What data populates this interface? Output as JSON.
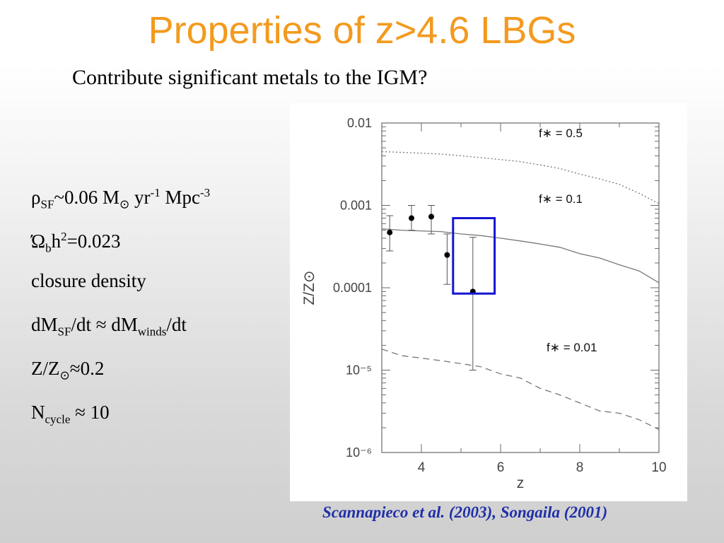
{
  "slide": {
    "title": "Properties of z>4.6 LBGs",
    "subtitle": "Contribute significant metals to the IGM?",
    "citation": "Scannapieco et al. (2003), Songaila (2001)"
  },
  "properties": {
    "rho": {
      "symbol": "ρ",
      "sub": "SF",
      "value": "~0.06 M",
      "sun": "⊙",
      "unit1": " yr",
      "exp1": "-1",
      "unit2": " Mpc",
      "exp2": "-3"
    },
    "omega": {
      "symbol": "Ώ",
      "sub": "b",
      "h": "h",
      "exp": "2",
      "value": "=0.023"
    },
    "closure": "closure density",
    "dm": {
      "a": "dM",
      "sub1": "SF",
      "b": "/dt ≈ dM",
      "sub2": "winds",
      "c": "/dt"
    },
    "z": {
      "a": "Z/Z",
      "sun": "⊙",
      "b": "≈0.2"
    },
    "ncycle": {
      "a": "N",
      "sub": "cycle",
      "b": " ≈ 10"
    }
  },
  "chart_data": {
    "type": "line",
    "xlabel": "z",
    "ylabel": "Z/Z⊙",
    "xlim": [
      3,
      10
    ],
    "ylim": [
      1e-06,
      0.01
    ],
    "log_y": true,
    "x_ticks": [
      "4",
      "6",
      "8",
      "10"
    ],
    "x_tick_values": [
      4,
      6,
      8,
      10
    ],
    "y_ticks": [
      "0.01",
      "0.001",
      "0.0001",
      "10⁻⁵",
      "10⁻⁶"
    ],
    "y_tick_values": [
      0.01,
      0.001,
      0.0001,
      1e-05,
      1e-06
    ],
    "series": [
      {
        "name": "f∗ = 0.5",
        "style": "dotted",
        "x": [
          3.0,
          3.5,
          4.0,
          4.5,
          5.0,
          5.5,
          6.0,
          6.5,
          7.0,
          7.5,
          8.0,
          8.5,
          9.0,
          9.5,
          10.0
        ],
        "y": [
          0.0045,
          0.0044,
          0.0043,
          0.0042,
          0.004,
          0.0038,
          0.0036,
          0.0034,
          0.0031,
          0.0028,
          0.0024,
          0.0021,
          0.0018,
          0.0014,
          0.00105
        ]
      },
      {
        "name": "f∗ = 0.1",
        "style": "solid",
        "x": [
          3.0,
          3.5,
          4.0,
          4.5,
          5.0,
          5.5,
          6.0,
          6.5,
          7.0,
          7.5,
          8.0,
          8.5,
          9.0,
          9.5,
          10.0
        ],
        "y": [
          0.00052,
          0.0005,
          0.00049,
          0.00048,
          0.00045,
          0.00043,
          0.0004,
          0.00037,
          0.00034,
          0.00031,
          0.00026,
          0.00023,
          0.00019,
          0.00016,
          0.000115
        ]
      },
      {
        "name": "f∗ = 0.01",
        "style": "dashed",
        "x": [
          3.0,
          3.5,
          4.0,
          4.5,
          5.0,
          5.5,
          6.0,
          6.5,
          7.0,
          7.5,
          8.0,
          8.5,
          9.0,
          9.5,
          10.0
        ],
        "y": [
          1.8e-05,
          1.5e-05,
          1.4e-05,
          1.3e-05,
          1.2e-05,
          1.1e-05,
          9e-06,
          8e-06,
          6e-06,
          5e-06,
          4e-06,
          3.2e-06,
          3e-06,
          2.5e-06,
          1.9e-06
        ]
      }
    ],
    "points": [
      {
        "x": 3.2,
        "y": 0.00047,
        "err_lo": 0.00028,
        "err_hi": 0.00075
      },
      {
        "x": 3.75,
        "y": 0.0007,
        "err_lo": 0.0005,
        "err_hi": 0.001
      },
      {
        "x": 4.25,
        "y": 0.00073,
        "err_lo": 0.00045,
        "err_hi": 0.001
      },
      {
        "x": 4.65,
        "y": 0.00025,
        "err_lo": 0.00011,
        "err_hi": 0.00045
      },
      {
        "x": 5.3,
        "y": 9e-05,
        "err_lo": 1e-05,
        "err_hi": 0.00041
      }
    ],
    "highlight_box": {
      "x": [
        4.8,
        5.85
      ],
      "y": [
        8.5e-05,
        0.0007
      ],
      "color": "#1414d2"
    }
  }
}
